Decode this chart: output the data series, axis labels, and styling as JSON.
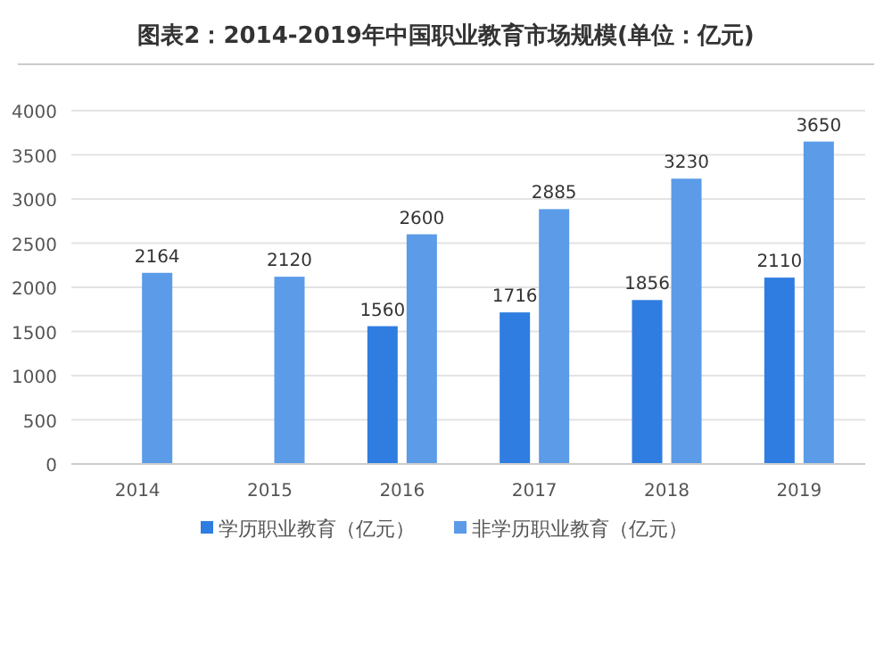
{
  "chart_data": {
    "type": "bar",
    "title": "图表2：2014-2019年中国职业教育市场规模(单位：亿元)",
    "categories": [
      "2014",
      "2015",
      "2016",
      "2017",
      "2018",
      "2019"
    ],
    "series": [
      {
        "name": "学历职业教育（亿元）",
        "color": "#2f7de1",
        "values": [
          null,
          null,
          1560,
          1716,
          1856,
          2110
        ]
      },
      {
        "name": "非学历职业教育（亿元）",
        "color": "#5b9be8",
        "values": [
          2164,
          2120,
          2600,
          2885,
          3230,
          3650
        ]
      }
    ],
    "ylim": [
      0,
      4000
    ],
    "yticks": [
      0,
      500,
      1000,
      1500,
      2000,
      2500,
      3000,
      3500,
      4000
    ],
    "grid": "y",
    "legend": "bottom",
    "data_labels": true
  }
}
